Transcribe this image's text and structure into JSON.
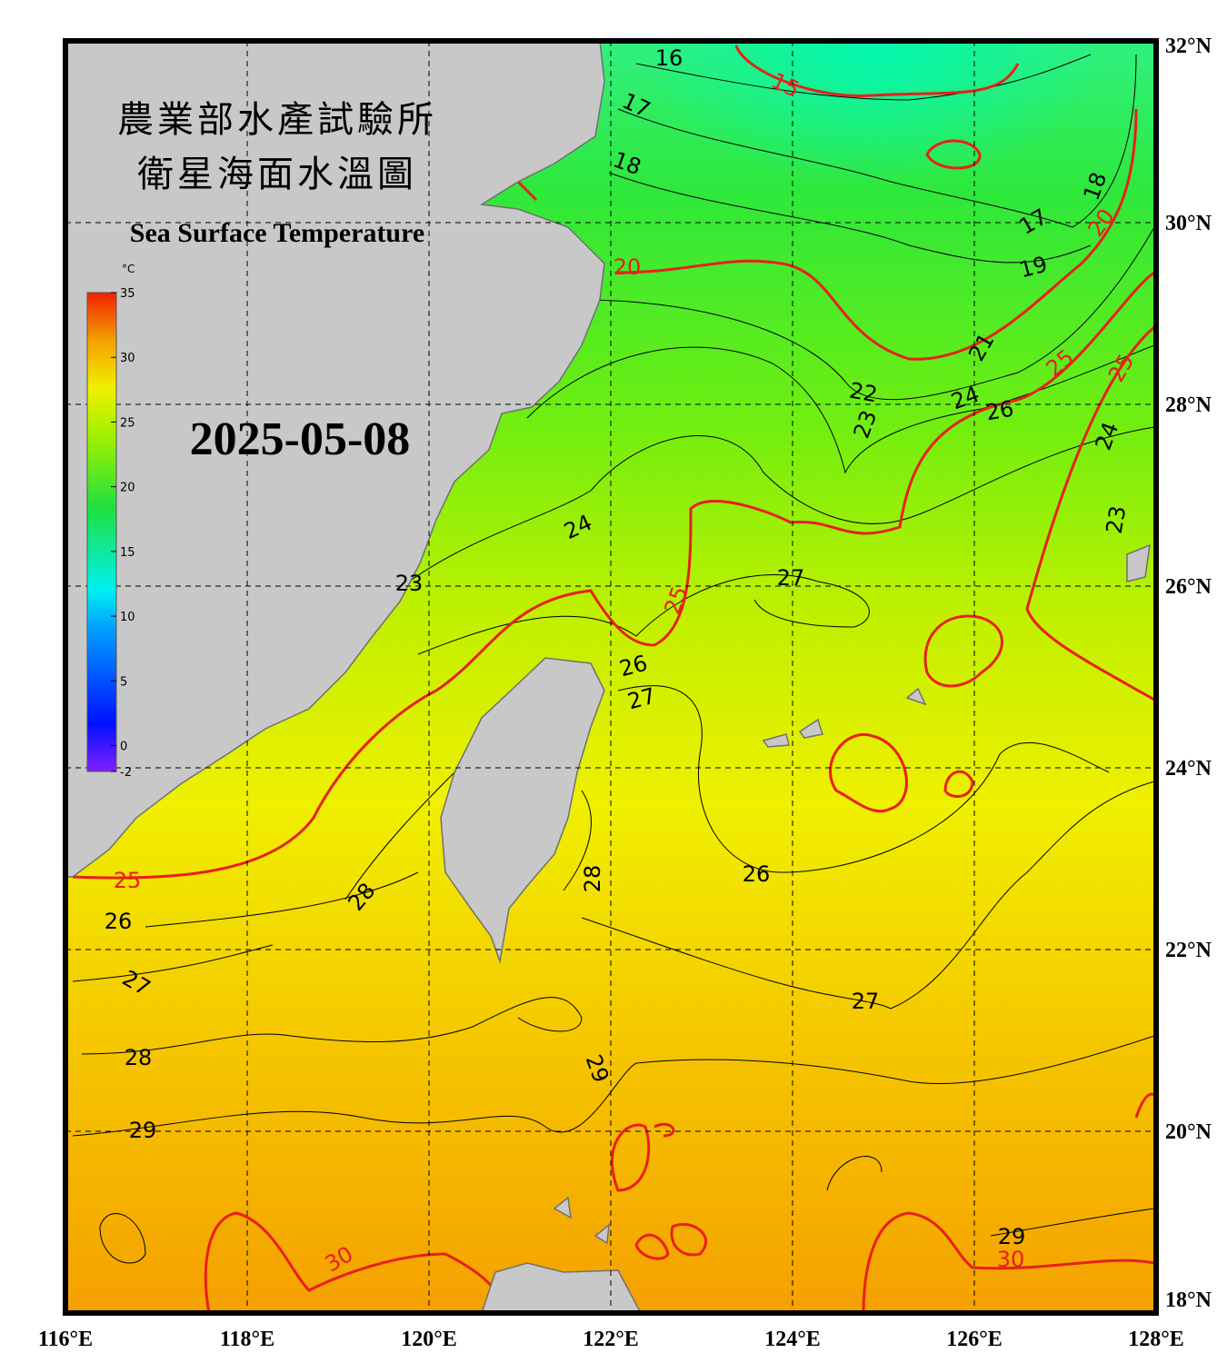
{
  "header": {
    "title_zh_1": "農業部水產試驗所",
    "title_zh_2": "衛星海面水溫圖",
    "title_en": "Sea Surface Temperature",
    "date": "2025-05-08"
  },
  "map": {
    "lonlim": [
      116,
      128
    ],
    "latlim": [
      18,
      32
    ],
    "lon_ticks": [
      {
        "value": 116,
        "label": "116°E"
      },
      {
        "value": 118,
        "label": "118°E"
      },
      {
        "value": 120,
        "label": "120°E"
      },
      {
        "value": 122,
        "label": "122°E"
      },
      {
        "value": 124,
        "label": "124°E"
      },
      {
        "value": 126,
        "label": "126°E"
      },
      {
        "value": 128,
        "label": "128°E"
      }
    ],
    "lat_ticks": [
      {
        "value": 18,
        "label": "18°N"
      },
      {
        "value": 20,
        "label": "20°N"
      },
      {
        "value": 22,
        "label": "22°N"
      },
      {
        "value": 24,
        "label": "24°N"
      },
      {
        "value": 26,
        "label": "26°N"
      },
      {
        "value": 28,
        "label": "28°N"
      },
      {
        "value": 30,
        "label": "30°N"
      },
      {
        "value": 32,
        "label": "32°N"
      }
    ],
    "grid": true,
    "isotherm_labels": [
      16,
      17,
      18,
      17,
      19,
      18,
      21,
      22,
      23,
      24,
      26,
      24,
      23,
      24,
      27,
      23,
      26,
      27,
      28,
      28,
      26,
      26,
      27,
      27,
      28,
      29,
      29,
      29
    ],
    "bold_isotherm_labels": [
      15,
      20,
      20,
      25,
      25,
      25,
      25,
      30,
      30
    ]
  },
  "colorbar": {
    "unit": "°C",
    "lim": [
      -2,
      35
    ],
    "ticks": [
      -2,
      0,
      5,
      10,
      15,
      20,
      25,
      30,
      35
    ]
  }
}
